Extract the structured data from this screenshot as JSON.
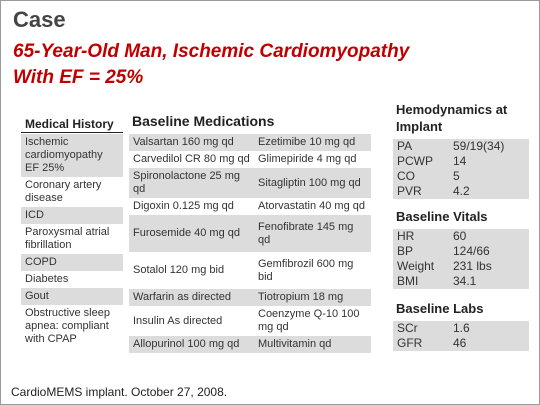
{
  "header": {
    "title": "Case",
    "subtitle_lines": [
      "65-Year-Old Man, Ischemic Cardiomyopathy",
      "With EF = 25%"
    ]
  },
  "medical_history": {
    "title": "Medical History",
    "rows": [
      "Ischemic cardiomyopathy EF 25%",
      "Coronary artery disease",
      "ICD",
      "Paroxysmal atrial fibrillation",
      "COPD",
      "Diabetes",
      "Gout",
      "Obstructive sleep apnea: compliant with CPAP"
    ]
  },
  "medications": {
    "title": "Baseline Medications",
    "rows": [
      [
        "Valsartan 160 mg qd",
        "Ezetimibe 10 mg qd"
      ],
      [
        "Carvedilol CR 80 mg qd",
        "Glimepiride 4 mg qd"
      ],
      [
        "Spironolactone 25 mg qd",
        "Sitagliptin 100 mg qd"
      ],
      [
        "Digoxin 0.125 mg qd",
        "Atorvastatin 40 mg qd"
      ],
      [
        "Furosemide 40 mg qd",
        "Fenofibrate 145 mg qd"
      ],
      [
        "Sotalol 120 mg bid",
        "Gemfibrozil 600 mg bid"
      ],
      [
        "Warfarin as directed",
        "Tiotropium 18 mg"
      ],
      [
        "Insulin As directed",
        "Coenzyme Q-10 100 mg qd"
      ],
      [
        "Allopurinol 100 mg qd",
        "Multivitamin qd"
      ]
    ]
  },
  "hemodynamics": {
    "title": "Hemodynamics at Implant",
    "rows": [
      [
        "PA",
        "59/19(34)"
      ],
      [
        "PCWP",
        "14"
      ],
      [
        "CO",
        "5"
      ],
      [
        "PVR",
        "4.2"
      ]
    ]
  },
  "vitals": {
    "title": "Baseline Vitals",
    "rows": [
      [
        "HR",
        "60"
      ],
      [
        "BP",
        "124/66"
      ],
      [
        "Weight",
        "231 lbs"
      ],
      [
        "BMI",
        "34.1"
      ]
    ]
  },
  "labs": {
    "title": "Baseline Labs",
    "rows": [
      [
        "SCr",
        "1.6"
      ],
      [
        "GFR",
        "46"
      ]
    ]
  },
  "footer": "CardioMEMS implant. October 27, 2008."
}
